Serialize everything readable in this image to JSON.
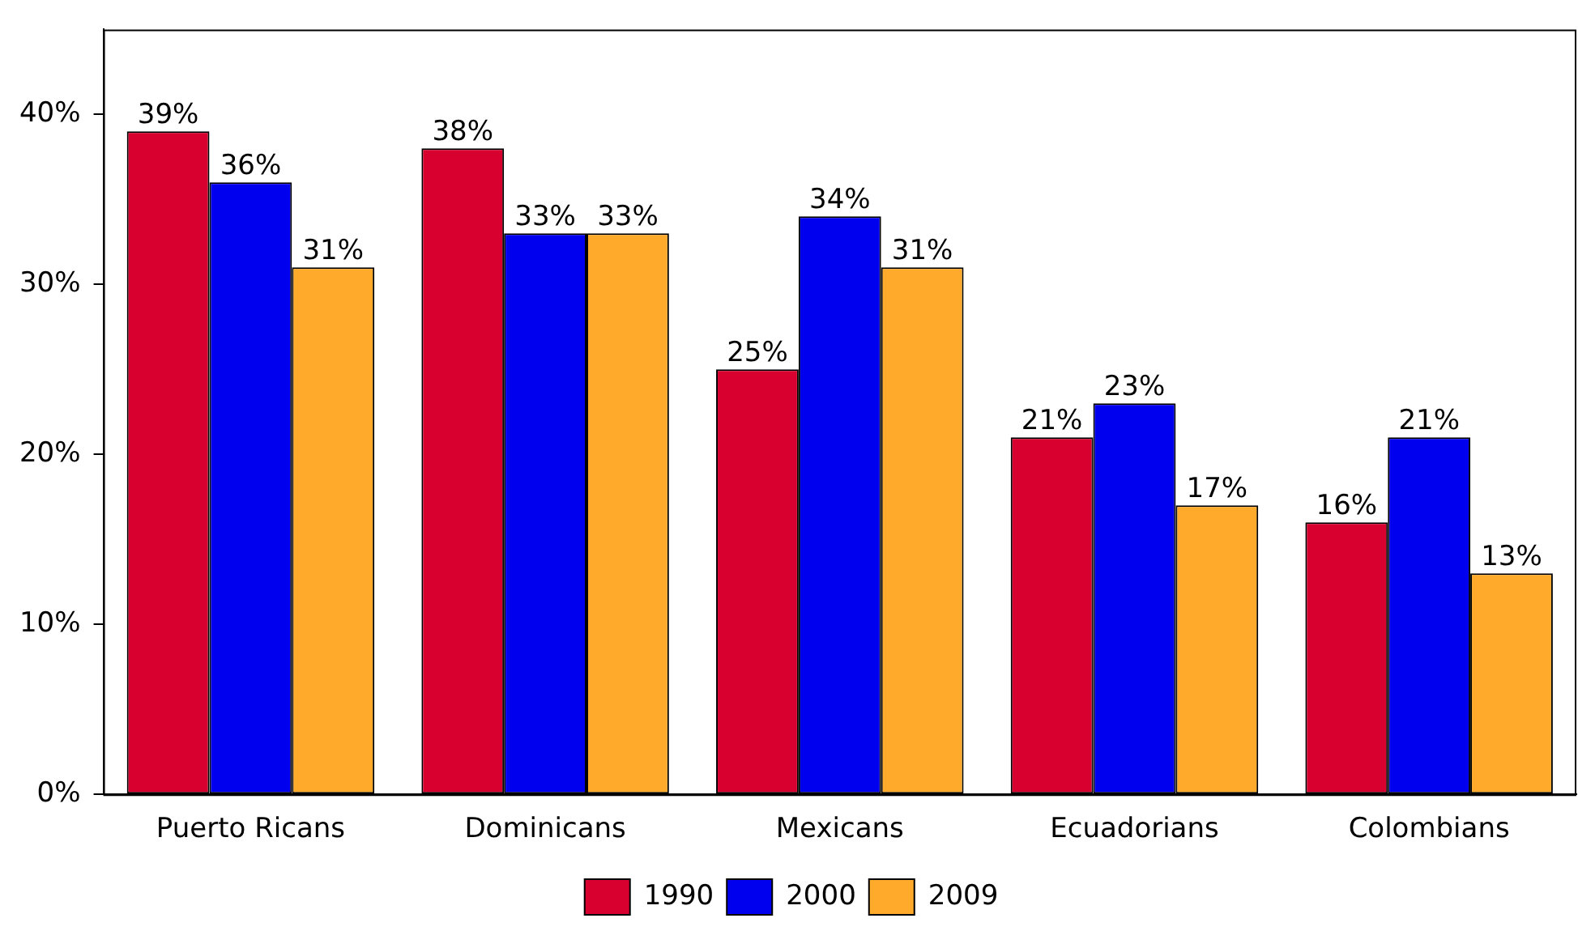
{
  "chart_data": {
    "type": "bar",
    "categories": [
      "Puerto Ricans",
      "Dominicans",
      "Mexicans",
      "Ecuadorians",
      "Colombians"
    ],
    "series": [
      {
        "name": "1990",
        "color": "#d7002f",
        "values": [
          39,
          38,
          25,
          21,
          16
        ],
        "value_labels": [
          "39%",
          "38%",
          "25%",
          "21%",
          "16%"
        ]
      },
      {
        "name": "2000",
        "color": "#0000ee",
        "values": [
          36,
          33,
          34,
          23,
          21
        ],
        "value_labels": [
          "36%",
          "33%",
          "34%",
          "23%",
          "21%"
        ]
      },
      {
        "name": "2009",
        "color": "#ffaa2a",
        "values": [
          31,
          33,
          31,
          17,
          13
        ],
        "value_labels": [
          "31%",
          "33%",
          "31%",
          "17%",
          "13%"
        ]
      }
    ],
    "ylim": [
      0,
      45
    ],
    "yticks": [
      {
        "value": 0,
        "label": "0%"
      },
      {
        "value": 10,
        "label": "10%"
      },
      {
        "value": 20,
        "label": "20%"
      },
      {
        "value": 30,
        "label": "30%"
      },
      {
        "value": 40,
        "label": "40%"
      }
    ],
    "grid": false,
    "legend": "bottom"
  }
}
